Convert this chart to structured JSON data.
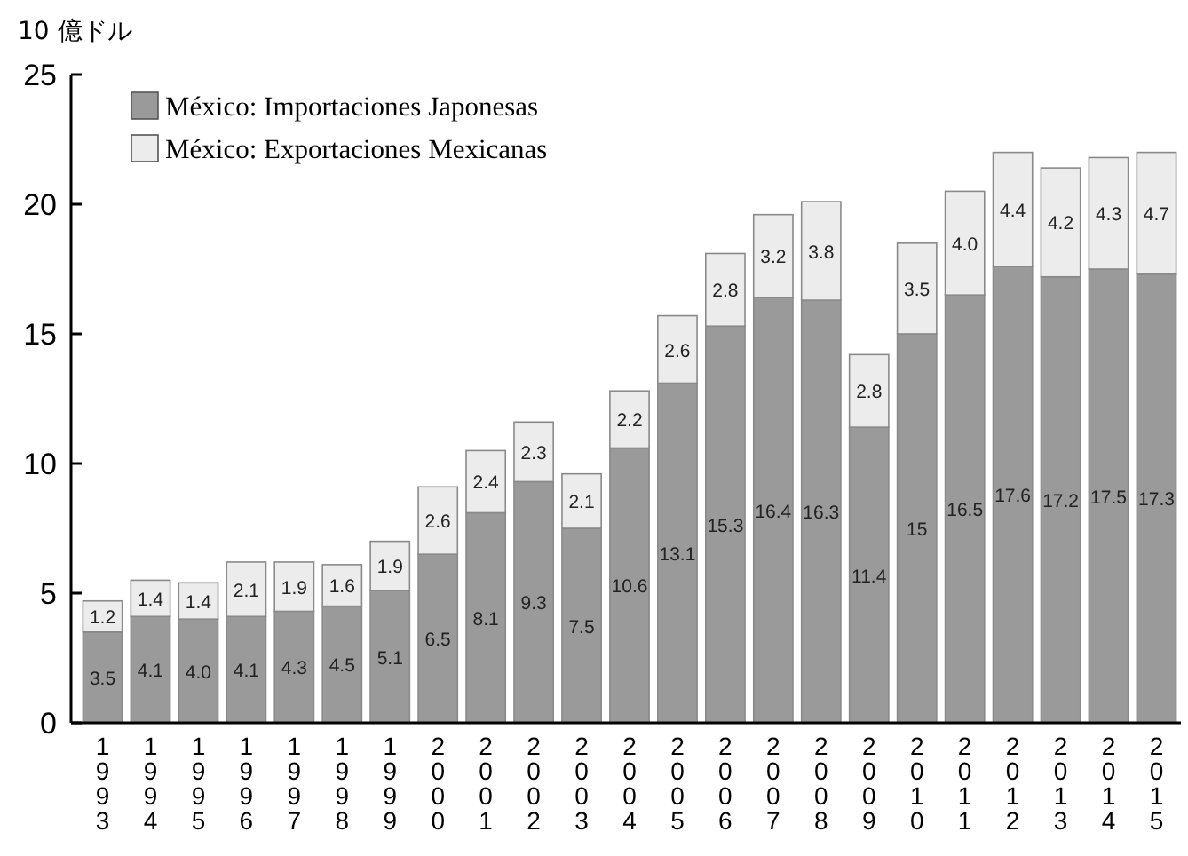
{
  "chart_data": {
    "type": "bar",
    "stacked": true,
    "ylabel": "10 億ドル",
    "categories": [
      "1993",
      "1994",
      "1995",
      "1996",
      "1997",
      "1998",
      "1999",
      "2000",
      "2001",
      "2002",
      "2003",
      "2004",
      "2005",
      "2006",
      "2007",
      "2008",
      "2009",
      "2010",
      "2011",
      "2012",
      "2013",
      "2014",
      "2015"
    ],
    "series": [
      {
        "name": "México: Importaciones Japonesas",
        "color": "#9a9a9a",
        "values": [
          3.5,
          4.1,
          4.0,
          4.1,
          4.3,
          4.5,
          5.1,
          6.5,
          8.1,
          9.3,
          7.5,
          10.6,
          13.1,
          15.3,
          16.4,
          16.3,
          11.4,
          15,
          16.5,
          17.6,
          17.2,
          17.5,
          17.3
        ],
        "value_labels": [
          "3.5",
          "4.1",
          "4.0",
          "4.1",
          "4.3",
          "4.5",
          "5.1",
          "6.5",
          "8.1",
          "9.3",
          "7.5",
          "10.6",
          "13.1",
          "15.3",
          "16.4",
          "16.3",
          "11.4",
          "15",
          "16.5",
          "17.6",
          "17.2",
          "17.5",
          "17.3"
        ]
      },
      {
        "name": "México: Exportaciones Mexicanas",
        "color": "#ececec",
        "values": [
          1.2,
          1.4,
          1.4,
          2.1,
          1.9,
          1.6,
          1.9,
          2.6,
          2.4,
          2.3,
          2.1,
          2.2,
          2.6,
          2.8,
          3.2,
          3.8,
          2.8,
          3.5,
          4.0,
          4.4,
          4.2,
          4.3,
          4.7
        ],
        "value_labels": [
          "1.2",
          "1.4",
          "1.4",
          "2.1",
          "1.9",
          "1.6",
          "1.9",
          "2.6",
          "2.4",
          "2.3",
          "2.1",
          "2.2",
          "2.6",
          "2.8",
          "3.2",
          "3.8",
          "2.8",
          "3.5",
          "4.0",
          "4.4",
          "4.2",
          "4.3",
          "4.7"
        ]
      }
    ],
    "ylim": [
      0,
      25
    ],
    "yticks": [
      0,
      5,
      10,
      15,
      20,
      25
    ],
    "legend": "top left",
    "grid": false
  }
}
